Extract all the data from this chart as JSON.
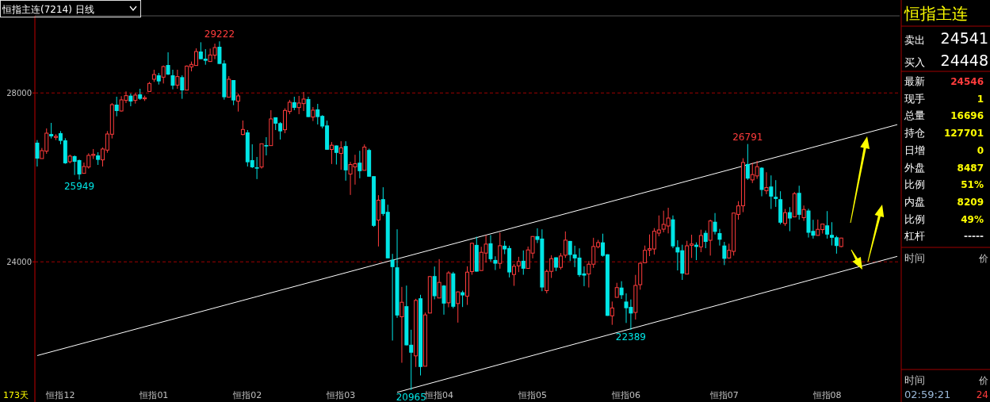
{
  "chart_data": [
    {
      "type": "candlestick",
      "title": "恒指主连(7214) 日线",
      "grid": "y",
      "ylim": [
        20718,
        29826
      ],
      "yticks": [
        24000,
        28000
      ],
      "categories": [
        null,
        null,
        null,
        null,
        null,
        "恒指12",
        null,
        null,
        null,
        null,
        null,
        null,
        null,
        null,
        null,
        null,
        null,
        null,
        null,
        null,
        null,
        null,
        null,
        null,
        null,
        "恒指01",
        null,
        null,
        null,
        null,
        null,
        null,
        null,
        null,
        null,
        null,
        null,
        null,
        null,
        null,
        null,
        null,
        null,
        null,
        null,
        "恒指02",
        null,
        null,
        null,
        null,
        null,
        null,
        null,
        null,
        null,
        null,
        null,
        null,
        null,
        null,
        null,
        null,
        null,
        null,
        null,
        "恒指03",
        null,
        null,
        null,
        null,
        null,
        null,
        null,
        null,
        null,
        null,
        null,
        null,
        null,
        null,
        null,
        null,
        null,
        null,
        null,
        null,
        "恒指04",
        null,
        null,
        null,
        null,
        null,
        null,
        null,
        null,
        null,
        null,
        null,
        null,
        null,
        null,
        null,
        null,
        null,
        null,
        null,
        "恒指05",
        null,
        null,
        null,
        null,
        null,
        null,
        null,
        null,
        null,
        null,
        null,
        null,
        null,
        null,
        null,
        null,
        null,
        null,
        null,
        "恒指06",
        null,
        null,
        null,
        null,
        null,
        null,
        null,
        null,
        null,
        null,
        null,
        null,
        null,
        null,
        null,
        null,
        null,
        null,
        null,
        null,
        "恒指07",
        null,
        null,
        null,
        null,
        null,
        null,
        null,
        null,
        null,
        null,
        null,
        null,
        null,
        null,
        null,
        null,
        null,
        null,
        null,
        null,
        null,
        "恒指08",
        null,
        null,
        null,
        null,
        null,
        null,
        null,
        null,
        null,
        null,
        null,
        null,
        null,
        null,
        null
      ],
      "ohlc": [
        [
          26822,
          26884,
          26258,
          26446
        ],
        [
          26446,
          26697,
          26446,
          26634
        ],
        [
          26621,
          27160,
          26559,
          27047
        ],
        [
          27028,
          27291,
          26922,
          26972
        ],
        [
          26947,
          27022,
          26884,
          26972
        ],
        [
          27047,
          27097,
          26784,
          26866
        ],
        [
          26878,
          26928,
          26321,
          26334
        ],
        [
          26371,
          26540,
          26334,
          26503
        ],
        [
          26503,
          26521,
          26058,
          26371
        ],
        [
          26409,
          26421,
          25949,
          26071
        ],
        [
          26096,
          26352,
          26096,
          26258
        ],
        [
          26246,
          26571,
          26208,
          26521
        ],
        [
          26521,
          26672,
          26434,
          26546
        ],
        [
          26521,
          26596,
          26296,
          26415
        ],
        [
          26415,
          26709,
          26258,
          26672
        ],
        [
          26647,
          27097,
          26584,
          27028
        ],
        [
          27022,
          27761,
          26922,
          27723
        ],
        [
          27723,
          27911,
          27448,
          27573
        ],
        [
          27573,
          27924,
          27560,
          27836
        ],
        [
          27823,
          28036,
          27761,
          27936
        ],
        [
          27936,
          27986,
          27686,
          27798
        ],
        [
          27823,
          27999,
          27748,
          27949
        ],
        [
          27967,
          28099,
          27836,
          27861
        ],
        [
          27861,
          27936,
          27811,
          27886
        ],
        [
          28036,
          28262,
          28024,
          28224
        ],
        [
          28324,
          28550,
          28262,
          28437
        ],
        [
          28418,
          28474,
          28199,
          28274
        ],
        [
          28374,
          28650,
          28224,
          28625
        ],
        [
          28662,
          28963,
          28424,
          28437
        ],
        [
          28418,
          28550,
          28086,
          28174
        ],
        [
          28186,
          28550,
          28099,
          28387
        ],
        [
          28374,
          28418,
          27861,
          28061
        ],
        [
          28068,
          28650,
          28068,
          28637
        ],
        [
          28618,
          28744,
          28512,
          28675
        ],
        [
          28650,
          29057,
          28650,
          28981
        ],
        [
          28981,
          29200,
          28800,
          28800
        ],
        [
          28812,
          29038,
          28668,
          28762
        ],
        [
          28744,
          29050,
          28744,
          28900
        ],
        [
          28894,
          29169,
          28800,
          29075
        ],
        [
          29094,
          29222,
          28687,
          28687
        ],
        [
          28700,
          28775,
          27842,
          27899
        ],
        [
          27899,
          28399,
          27899,
          28324
        ],
        [
          28305,
          28305,
          27711,
          27823
        ],
        [
          27805,
          27986,
          27560,
          27930
        ],
        [
          27016,
          27348,
          26997,
          27135
        ],
        [
          27066,
          27122,
          26258,
          26359
        ],
        [
          26409,
          26784,
          26221,
          26240
        ],
        [
          26240,
          26484,
          25960,
          26208
        ],
        [
          26246,
          26803,
          26208,
          26797
        ],
        [
          26765,
          26953,
          26521,
          26734
        ],
        [
          26753,
          27592,
          26753,
          27385
        ],
        [
          27423,
          27423,
          27122,
          27273
        ],
        [
          27285,
          27310,
          26897,
          27091
        ],
        [
          27129,
          27636,
          27047,
          27586
        ],
        [
          27560,
          27836,
          27498,
          27780
        ],
        [
          27780,
          27911,
          27592,
          27648
        ],
        [
          27654,
          27930,
          27498,
          27761
        ],
        [
          27748,
          28024,
          27573,
          27855
        ],
        [
          27855,
          27911,
          27429,
          27429
        ],
        [
          27429,
          27667,
          27335,
          27592
        ],
        [
          27611,
          27742,
          27254,
          27429
        ],
        [
          27457,
          27475,
          27162,
          27206
        ],
        [
          27231,
          27344,
          26655,
          26655
        ],
        [
          26662,
          26837,
          26317,
          26762
        ],
        [
          26756,
          26756,
          26305,
          26580
        ],
        [
          26568,
          26856,
          26180,
          26699
        ],
        [
          26743,
          26856,
          25923,
          26167
        ],
        [
          26080,
          26367,
          25585,
          26305
        ],
        [
          26249,
          26536,
          25829,
          26324
        ],
        [
          26349,
          26630,
          25979,
          26148
        ],
        [
          26167,
          26781,
          26167,
          26718
        ],
        [
          26649,
          26680,
          26017,
          26017
        ],
        [
          26029,
          26029,
          24828,
          24853
        ],
        [
          24990,
          25579,
          24364,
          25460
        ],
        [
          25485,
          25767,
          25090,
          25134
        ],
        [
          25184,
          25353,
          24083,
          24083
        ],
        [
          24051,
          24189,
          22136,
          23876
        ],
        [
          23870,
          24771,
          22674,
          22730
        ],
        [
          22699,
          23406,
          21610,
          23043
        ],
        [
          22950,
          23438,
          22023,
          22023
        ],
        [
          22036,
          22392,
          20965,
          21848
        ],
        [
          21773,
          23125,
          21510,
          23087
        ],
        [
          23137,
          23219,
          21309,
          21510
        ],
        [
          21528,
          22799,
          21528,
          22743
        ],
        [
          22787,
          23663,
          22787,
          23651
        ],
        [
          23663,
          23889,
          23112,
          23187
        ],
        [
          23144,
          24064,
          23144,
          23513
        ],
        [
          23438,
          23450,
          22749,
          23012
        ],
        [
          23031,
          23782,
          22924,
          23738
        ],
        [
          23726,
          23763,
          22899,
          22937
        ],
        [
          23012,
          23300,
          22561,
          23288
        ],
        [
          23280,
          23318,
          22930,
          23205
        ],
        [
          23187,
          23894,
          22980,
          23756
        ],
        [
          23769,
          24457,
          23694,
          24439
        ],
        [
          24401,
          24595,
          23769,
          23769
        ],
        [
          23794,
          24357,
          23794,
          24226
        ],
        [
          24207,
          24633,
          23982,
          24420
        ],
        [
          24439,
          24633,
          24007,
          24063
        ],
        [
          24044,
          24132,
          23806,
          23957
        ],
        [
          23963,
          24695,
          23838,
          24382
        ],
        [
          24382,
          24495,
          24182,
          24295
        ],
        [
          24326,
          24382,
          23631,
          23750
        ],
        [
          23700,
          23950,
          23431,
          23894
        ],
        [
          23906,
          24119,
          23756,
          24007
        ],
        [
          24025,
          24270,
          23694,
          23838
        ],
        [
          23844,
          24363,
          23844,
          24282
        ],
        [
          24207,
          24608,
          24082,
          24601
        ],
        [
          24608,
          24795,
          24445,
          24520
        ],
        [
          24551,
          24770,
          23305,
          23393
        ],
        [
          23318,
          23819,
          23255,
          23775
        ],
        [
          23775,
          24157,
          23618,
          24075
        ],
        [
          24107,
          24107,
          23781,
          23863
        ],
        [
          23869,
          24207,
          23819,
          24138
        ],
        [
          24157,
          24720,
          24094,
          24514
        ],
        [
          24495,
          24495,
          24019,
          24163
        ],
        [
          24176,
          24382,
          23875,
          24082
        ],
        [
          24100,
          24320,
          23644,
          23687
        ],
        [
          23725,
          23894,
          23424,
          23675
        ],
        [
          23712,
          24019,
          23393,
          23944
        ],
        [
          23944,
          24570,
          23856,
          24363
        ],
        [
          24357,
          24520,
          24320,
          24457
        ],
        [
          24461,
          24667,
          24123,
          24142
        ],
        [
          24179,
          24179,
          22721,
          22721
        ],
        [
          22721,
          23059,
          22508,
          22908
        ],
        [
          23159,
          23503,
          23159,
          23390
        ],
        [
          23390,
          23541,
          23121,
          23209
        ],
        [
          23059,
          23253,
          22552,
          22902
        ],
        [
          22933,
          23109,
          22389,
          22777
        ],
        [
          22802,
          23691,
          22633,
          23441
        ],
        [
          23459,
          23985,
          23340,
          23966
        ],
        [
          23979,
          24386,
          23979,
          24273
        ],
        [
          24279,
          24649,
          24135,
          24311
        ],
        [
          24304,
          24799,
          24173,
          24724
        ],
        [
          24680,
          25099,
          24605,
          24755
        ],
        [
          24774,
          25212,
          24699,
          24887
        ],
        [
          24849,
          25281,
          24674,
          25037
        ],
        [
          25006,
          25099,
          24323,
          24367
        ],
        [
          24348,
          24511,
          23797,
          24223
        ],
        [
          24273,
          24405,
          23572,
          23722
        ],
        [
          23710,
          24498,
          23710,
          24380
        ],
        [
          24392,
          24642,
          24092,
          24423
        ],
        [
          24405,
          24461,
          24041,
          24354
        ],
        [
          24354,
          24761,
          24229,
          24624
        ],
        [
          24686,
          24743,
          24323,
          24473
        ],
        [
          24511,
          24999,
          24148,
          24968
        ],
        [
          24949,
          25156,
          24649,
          24711
        ],
        [
          24680,
          24780,
          24386,
          24524
        ],
        [
          24386,
          24473,
          23923,
          24073
        ],
        [
          24092,
          24430,
          24073,
          24273
        ],
        [
          24248,
          25156,
          24148,
          25156
        ],
        [
          25124,
          25437,
          24999,
          25325
        ],
        [
          25327,
          26454,
          25177,
          26354
        ],
        [
          26316,
          26791,
          25941,
          25972
        ],
        [
          25941,
          26348,
          25866,
          26066
        ],
        [
          26035,
          26392,
          25966,
          26254
        ],
        [
          26229,
          26241,
          25553,
          25703
        ],
        [
          25684,
          26122,
          25603,
          25759
        ],
        [
          25784,
          26047,
          25252,
          25546
        ],
        [
          25540,
          25935,
          25302,
          25490
        ],
        [
          25484,
          25672,
          24889,
          24927
        ],
        [
          24908,
          25252,
          24852,
          25165
        ],
        [
          25177,
          25296,
          24726,
          25027
        ],
        [
          25064,
          25653,
          25064,
          25615
        ],
        [
          25634,
          25803,
          25002,
          25114
        ],
        [
          25046,
          25334,
          24970,
          25240
        ],
        [
          25215,
          25258,
          24576,
          24689
        ],
        [
          24733,
          24996,
          24551,
          24620
        ],
        [
          24626,
          25002,
          24626,
          24770
        ],
        [
          24764,
          24902,
          24670,
          24895
        ],
        [
          24864,
          25202,
          24551,
          24645
        ],
        [
          24639,
          24939,
          24388,
          24570
        ],
        [
          24582,
          24614,
          24194,
          24376
        ],
        [
          24363,
          24570,
          24344,
          24564
        ],
        null,
        null,
        null,
        null,
        null,
        null,
        null,
        null,
        null,
        null,
        null,
        null
      ],
      "series": [
        {
          "type": "line",
          "color": "#ffffff",
          "values": [
            21780,
            null,
            null,
            null,
            null,
            null,
            null,
            null,
            null,
            null,
            null,
            null,
            null,
            null,
            null,
            null,
            null,
            null,
            null,
            null,
            null,
            null,
            null,
            null,
            null,
            null,
            null,
            null,
            null,
            null,
            null,
            null,
            null,
            null,
            null,
            null,
            null,
            null,
            null,
            null,
            null,
            null,
            null,
            null,
            null,
            null,
            null,
            null,
            null,
            null,
            null,
            null,
            null,
            null,
            null,
            null,
            null,
            null,
            null,
            null,
            null,
            null,
            null,
            null,
            null,
            null,
            null,
            null,
            null,
            null,
            null,
            null,
            null,
            null,
            null,
            null,
            null,
            null,
            null,
            null,
            null,
            null,
            null,
            null,
            null,
            null,
            null,
            null,
            null,
            null,
            null,
            null,
            null,
            null,
            null,
            null,
            null,
            null,
            null,
            null,
            null,
            null,
            null,
            null,
            null,
            null,
            null,
            null,
            null,
            null,
            null,
            null,
            null,
            null,
            null,
            null,
            null,
            null,
            null,
            null,
            null,
            null,
            null,
            null,
            null,
            null,
            null,
            null,
            null,
            null,
            null,
            null,
            null,
            null,
            null,
            null,
            null,
            null,
            null,
            null,
            null,
            null,
            null,
            null,
            null,
            null,
            null,
            null,
            null,
            null,
            null,
            null,
            null,
            null,
            null,
            null,
            null,
            null,
            null,
            null,
            null,
            null,
            null,
            null,
            null,
            null,
            null,
            null,
            null,
            null,
            null,
            null,
            null,
            null,
            null,
            null,
            null,
            null,
            null,
            null,
            null,
            null,
            null,
            null,
            27250
          ]
        },
        {
          "type": "line",
          "color": "#ffffff",
          "values": [
            null,
            null,
            null,
            null,
            null,
            null,
            null,
            null,
            null,
            null,
            null,
            null,
            null,
            null,
            null,
            null,
            null,
            null,
            null,
            null,
            null,
            null,
            null,
            null,
            null,
            null,
            null,
            null,
            null,
            null,
            null,
            null,
            null,
            null,
            null,
            null,
            null,
            null,
            null,
            null,
            null,
            null,
            null,
            null,
            null,
            null,
            null,
            null,
            null,
            null,
            null,
            null,
            null,
            null,
            null,
            null,
            null,
            null,
            null,
            null,
            null,
            null,
            null,
            null,
            null,
            null,
            null,
            null,
            null,
            null,
            null,
            null,
            null,
            null,
            null,
            null,
            null,
            20910,
            null,
            null,
            null,
            null,
            null,
            null,
            null,
            null,
            null,
            null,
            null,
            null,
            null,
            null,
            null,
            null,
            null,
            null,
            null,
            null,
            null,
            null,
            null,
            null,
            null,
            null,
            null,
            null,
            null,
            null,
            null,
            null,
            null,
            null,
            null,
            null,
            null,
            null,
            null,
            null,
            null,
            null,
            null,
            null,
            null,
            null,
            null,
            null,
            null,
            null,
            null,
            null,
            null,
            null,
            null,
            null,
            null,
            null,
            null,
            null,
            null,
            null,
            null,
            null,
            null,
            null,
            null,
            null,
            null,
            null,
            null,
            null,
            null,
            null,
            null,
            null,
            null,
            null,
            null,
            null,
            null,
            null,
            null,
            null,
            null,
            null,
            null,
            null,
            null,
            null,
            null,
            null,
            null,
            null,
            null,
            null,
            null,
            null,
            null,
            null,
            null,
            null,
            null,
            null,
            null,
            null,
            24130
          ]
        }
      ],
      "annotations": [
        {
          "text": "29222",
          "y": 29222
        },
        {
          "text": "25949",
          "y": 25949
        },
        {
          "text": "26791",
          "y": 26791
        },
        {
          "text": "22389",
          "y": 22389
        },
        {
          "text": "20965",
          "y": 20965
        },
        "173天"
      ]
    },
    {
      "type": "other",
      "title": "恒指主连",
      "annotations": [
        "卖出",
        "24541",
        "买入",
        "24448",
        "最新",
        "24546",
        "现手",
        "1",
        "总量",
        "16696",
        "持仓",
        "127701",
        "日增",
        "0",
        "外盘",
        "8487",
        "比例",
        "51%",
        "内盘",
        "8209",
        "比例",
        "49%",
        "杠杆",
        "-----",
        "时间",
        "价",
        "时间",
        "价",
        "02:59:21",
        "24"
      ]
    }
  ]
}
